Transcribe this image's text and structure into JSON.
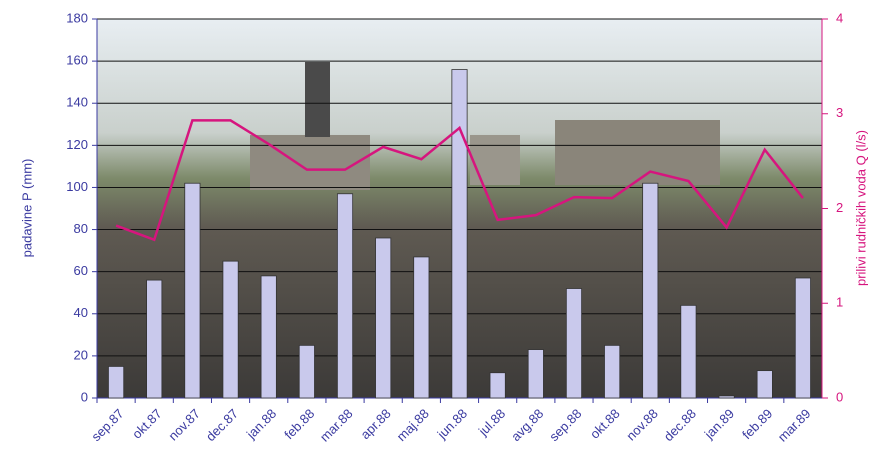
{
  "chart_data": {
    "type": "bar",
    "categories": [
      "sep.87",
      "okt.87",
      "nov.87",
      "dec.87",
      "jan.88",
      "feb.88",
      "mar.88",
      "apr.88",
      "maj.88",
      "jun.88",
      "jul.88",
      "avg.88",
      "sep.88",
      "okt.88",
      "nov.88",
      "dec.88",
      "jan.89",
      "feb.89",
      "mar.89"
    ],
    "ylabel": "padavine P (mm)",
    "y2label": "prilivi rudničkih voda Q (l/s)",
    "ylim": [
      0,
      180
    ],
    "yticks": [
      0,
      20,
      40,
      60,
      80,
      100,
      120,
      140,
      160,
      180
    ],
    "y2lim": [
      0,
      4
    ],
    "y2ticks": [
      0,
      1,
      2,
      3,
      4
    ],
    "grid": true,
    "series": [
      {
        "type": "bar",
        "color": "#c9c9ec",
        "values": [
          15,
          56,
          102,
          65,
          58,
          25,
          97,
          76,
          67,
          156,
          12,
          23,
          52,
          25,
          102,
          44,
          1,
          13,
          57
        ]
      },
      {
        "type": "line",
        "axis": "y2",
        "color": "#d6157e",
        "values": [
          1.82,
          1.67,
          2.93,
          2.93,
          2.68,
          2.41,
          2.41,
          2.65,
          2.52,
          2.85,
          1.88,
          1.93,
          2.12,
          2.11,
          2.39,
          2.29,
          1.8,
          2.62,
          2.11
        ]
      }
    ]
  }
}
